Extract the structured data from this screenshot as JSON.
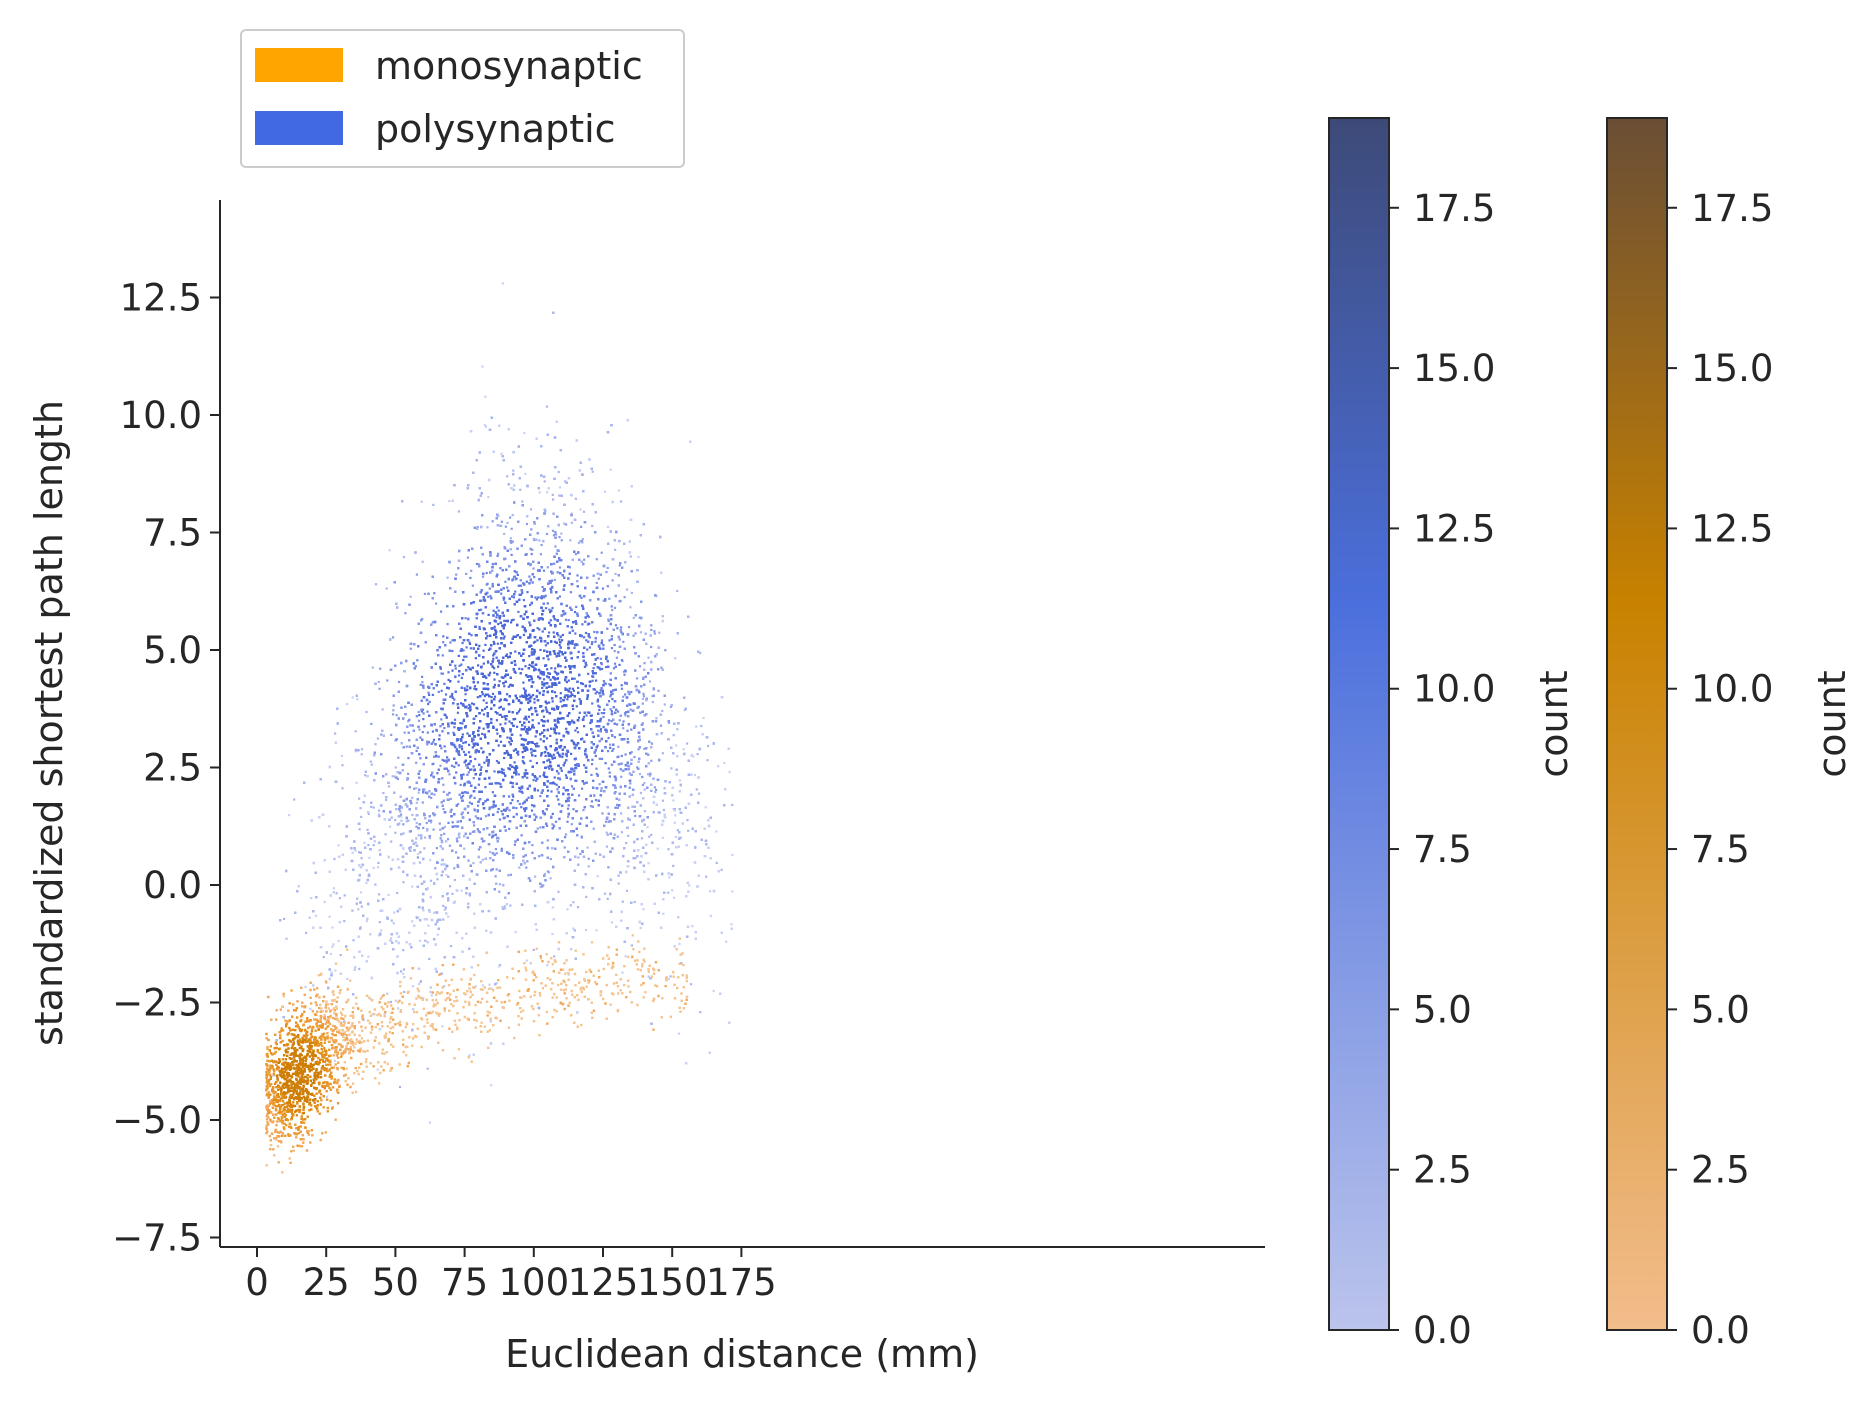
{
  "chart_data": {
    "type": "heatmap",
    "title": "",
    "xlabel": "Euclidean distance (mm)",
    "ylabel": "standardized shortest path length",
    "xlim": [
      -5,
      182
    ],
    "ylim": [
      -7.8,
      14.5
    ],
    "xticks": [
      0,
      25,
      50,
      75,
      100,
      125,
      150,
      175
    ],
    "xtick_labels": [
      "0",
      "25",
      "50",
      "75",
      "100",
      "125",
      "150",
      "175"
    ],
    "yticks": [
      -7.5,
      -5.0,
      -2.5,
      0.0,
      2.5,
      5.0,
      7.5,
      10.0,
      12.5
    ],
    "ytick_labels": [
      "−7.5",
      "−5.0",
      "−2.5",
      "0.0",
      "2.5",
      "5.0",
      "7.5",
      "10.0",
      "12.5"
    ],
    "grid": false,
    "legend_position": "top-left, above axes",
    "series": [
      {
        "name": "monosynaptic",
        "color": "#FFA500",
        "distribution": {
          "x_range": [
            3,
            155
          ],
          "y_range": [
            -6.6,
            -1.0
          ],
          "density_peak": [
            15,
            -4.0
          ],
          "trend_x": [
            5,
            15,
            25,
            50,
            75,
            100,
            125,
            150
          ],
          "trend_y": [
            -4.3,
            -4.0,
            -3.4,
            -3.0,
            -2.5,
            -2.2,
            -2.0,
            -2.0
          ]
        }
      },
      {
        "name": "polysynaptic",
        "color": "#4169E1",
        "distribution": {
          "x_range": [
            5,
            173
          ],
          "y_range": [
            -5.3,
            13.5
          ],
          "density_peak": [
            95,
            4.0
          ],
          "trend_x": [
            5,
            15,
            25,
            50,
            75,
            100,
            125,
            150,
            170
          ],
          "trend_y": [
            -1.8,
            -1.2,
            -0.5,
            1.5,
            3.2,
            4.2,
            3.8,
            2.0,
            0.5
          ]
        }
      }
    ],
    "colorbars": [
      {
        "series": "polysynaptic",
        "label": "count",
        "range": [
          0,
          18.9
        ],
        "ticks": [
          0.0,
          2.5,
          5.0,
          7.5,
          10.0,
          12.5,
          15.0,
          17.5
        ],
        "tick_labels": [
          "0.0",
          "2.5",
          "5.0",
          "7.5",
          "10.0",
          "12.5",
          "15.0",
          "17.5"
        ],
        "color_low": "#BBC4EC",
        "color_mid": "#4B6FDC",
        "color_high": "#3D4A78"
      },
      {
        "series": "monosynaptic",
        "label": "count",
        "range": [
          0,
          18.9
        ],
        "ticks": [
          0.0,
          2.5,
          5.0,
          7.5,
          10.0,
          12.5,
          15.0,
          17.5
        ],
        "tick_labels": [
          "0.0",
          "2.5",
          "5.0",
          "7.5",
          "10.0",
          "12.5",
          "15.0",
          "17.5"
        ],
        "color_low": "#F2BD8C",
        "color_mid": "#C88200",
        "color_high": "#6A4E35"
      }
    ]
  }
}
